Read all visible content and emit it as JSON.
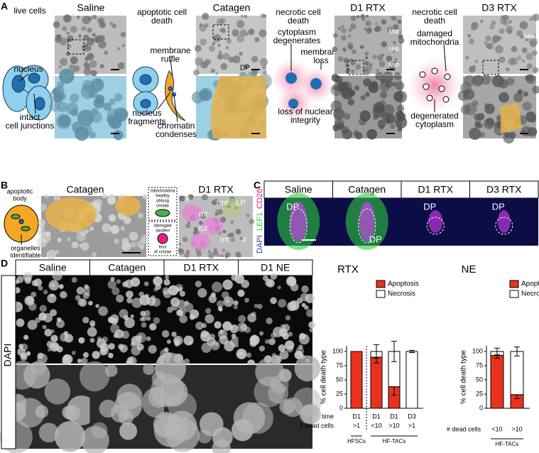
{
  "panel_a": {
    "letter": "A",
    "live_cells": "live cells",
    "saline": "Saline",
    "nucleus": "nucleus",
    "intact_junctions": [
      "intact",
      "cell junctions"
    ],
    "apoptotic": [
      "apoptotic cell",
      "death"
    ],
    "catagen": "Catagen",
    "membrane_ruffle": [
      "membrane",
      "ruffle"
    ],
    "nucleus_fragments": [
      "nucleus",
      "fragments"
    ],
    "chromatin": [
      "chromatin",
      "condenses"
    ],
    "dp": "DP",
    "necrotic_1": [
      "necrotic cell",
      "death"
    ],
    "cytoplasm": [
      "cytoplasm",
      "degenerates"
    ],
    "membrane_loss": [
      "membrane",
      "loss"
    ],
    "nuclear_integrity": [
      "loss of nuclear",
      "integrity"
    ],
    "d1_rtx": "D1 RTX",
    "macrophage_labels": [
      "MΦ",
      "MΦ",
      "MΦ"
    ],
    "necrotic_2": [
      "necrotic cell",
      "death"
    ],
    "damaged_mito": [
      "damaged",
      "mitochondria"
    ],
    "degenerated": [
      "degenerated",
      "cytoplasm"
    ],
    "d3_rtx": "D3 RTX",
    "d3_macrophage": "MΦ"
  },
  "panel_b": {
    "letter": "B",
    "apoptotic_body": [
      "apoptotic",
      "body"
    ],
    "organelles": [
      "organelles",
      "identifiable"
    ],
    "catagen": "Catagen",
    "mitochondria": "mitochondria",
    "healthy": [
      "healthy",
      "oblong",
      "cristae"
    ],
    "damaged": [
      "damaged",
      "swollen"
    ],
    "loss_cristae": [
      "loss",
      "of cristae"
    ],
    "d1_rtx": "D1 RTX",
    "em_labels": [
      "#",
      "mt",
      "LP",
      "mt",
      "mt",
      "mt",
      "#"
    ]
  },
  "panel_c": {
    "letter": "C",
    "headers": [
      "Saline",
      "Catagen",
      "D1 RTX",
      "D3 RTX"
    ],
    "stain": [
      "DAPI",
      "LEF1",
      "CD26"
    ],
    "dp_labels": [
      "DP",
      "DP",
      "DP",
      "DP"
    ]
  },
  "panel_d": {
    "letter": "D",
    "headers": [
      "Saline",
      "Catagen",
      "D1 RTX",
      "D1 NE"
    ],
    "stain": "DAPI"
  },
  "chart_data": [
    {
      "type": "bar",
      "stacked": true,
      "title": "RTX",
      "ylabel": "% cell death type",
      "row_label": "time",
      "categories": [
        "D1",
        "D1",
        "D1",
        "D3"
      ],
      "xlabel": "# dead cells",
      "dead_cells": [
        ">1",
        "<10",
        ">10",
        ">1"
      ],
      "groups": [
        "HFSCs",
        "HF-TACs"
      ],
      "series": [
        {
          "name": "Apoptosis",
          "color": "#e8321e",
          "values": [
            100,
            90,
            38,
            0
          ],
          "errors": [
            0,
            10,
            15,
            0
          ]
        },
        {
          "name": "Necrosis",
          "color": "#ffffff",
          "values": [
            0,
            10,
            62,
            100
          ],
          "errors": [
            0,
            12,
            18,
            2
          ]
        }
      ],
      "ylim": [
        0,
        110
      ],
      "yticks": [
        0,
        25,
        50,
        75,
        100
      ]
    },
    {
      "type": "bar",
      "stacked": true,
      "title": "NE",
      "ylabel": "% cell death type",
      "xlabel": "# dead cells",
      "categories": [
        "<10",
        ">10"
      ],
      "groups": [
        "HF-TACs"
      ],
      "series": [
        {
          "name": "Apoptosis",
          "color": "#e8321e",
          "values": [
            93,
            24
          ],
          "errors": [
            5,
            7
          ]
        },
        {
          "name": "Necrosis",
          "color": "#ffffff",
          "values": [
            7,
            76
          ],
          "errors": [
            6,
            8
          ]
        }
      ],
      "ylim": [
        0,
        110
      ],
      "yticks": [
        0,
        25,
        50,
        75,
        100
      ]
    }
  ]
}
